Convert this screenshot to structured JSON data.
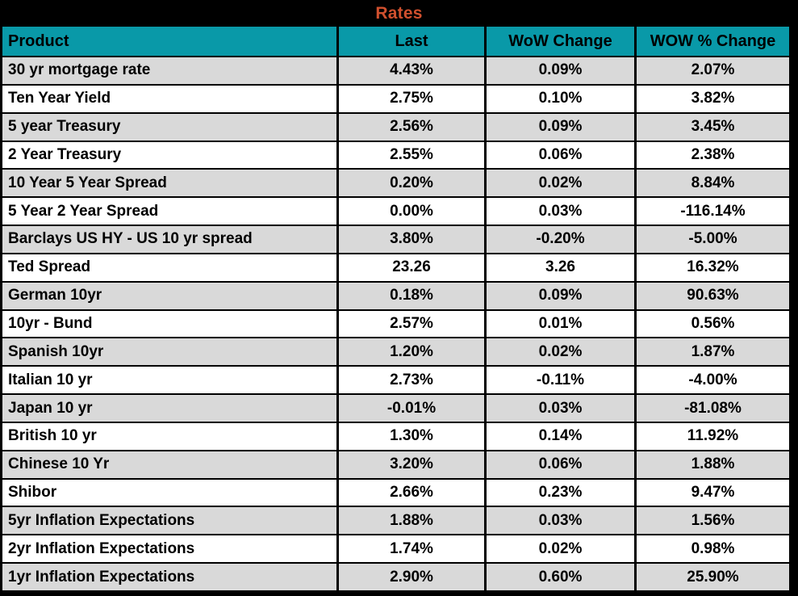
{
  "title": "Rates",
  "colors": {
    "frame_bg": "#000000",
    "title_color": "#D0502E",
    "header_bg": "#0999A8",
    "header_text": "#000000",
    "row_bg": "#FFFFFF",
    "row_alt_bg": "#D9D9D9",
    "cell_text": "#000000"
  },
  "chart_data": {
    "type": "table",
    "title": "Rates",
    "columns": [
      "Product",
      "Last",
      "WoW Change",
      "WOW % Change"
    ],
    "rows": [
      [
        "30 yr mortgage rate",
        "4.43%",
        "0.09%",
        "2.07%"
      ],
      [
        "Ten Year Yield",
        "2.75%",
        "0.10%",
        "3.82%"
      ],
      [
        "5 year Treasury",
        "2.56%",
        "0.09%",
        "3.45%"
      ],
      [
        "2 Year Treasury",
        "2.55%",
        "0.06%",
        "2.38%"
      ],
      [
        "10 Year 5 Year Spread",
        "0.20%",
        "0.02%",
        "8.84%"
      ],
      [
        "5 Year 2 Year Spread",
        "0.00%",
        "0.03%",
        "-116.14%"
      ],
      [
        "Barclays US HY - US 10 yr spread",
        "3.80%",
        "-0.20%",
        "-5.00%"
      ],
      [
        "Ted Spread",
        "23.26",
        "3.26",
        "16.32%"
      ],
      [
        "German 10yr",
        "0.18%",
        "0.09%",
        "90.63%"
      ],
      [
        "10yr - Bund",
        "2.57%",
        "0.01%",
        "0.56%"
      ],
      [
        "Spanish 10yr",
        "1.20%",
        "0.02%",
        "1.87%"
      ],
      [
        "Italian 10 yr",
        "2.73%",
        "-0.11%",
        "-4.00%"
      ],
      [
        "Japan 10 yr",
        "-0.01%",
        "0.03%",
        "-81.08%"
      ],
      [
        "British 10 yr",
        "1.30%",
        "0.14%",
        "11.92%"
      ],
      [
        "Chinese 10 Yr",
        "3.20%",
        "0.06%",
        "1.88%"
      ],
      [
        "Shibor",
        "2.66%",
        "0.23%",
        "9.47%"
      ],
      [
        "5yr Inflation Expectations",
        "1.88%",
        "0.03%",
        "1.56%"
      ],
      [
        "2yr Inflation Expectations",
        "1.74%",
        "0.02%",
        "0.98%"
      ],
      [
        "1yr Inflation Expectations",
        "2.90%",
        "0.60%",
        "25.90%"
      ]
    ],
    "layout": {
      "grid": "black gridlines",
      "header_style": "teal background, black bold text",
      "row_striping": "odd rows gray, even rows white, starting gray"
    }
  }
}
